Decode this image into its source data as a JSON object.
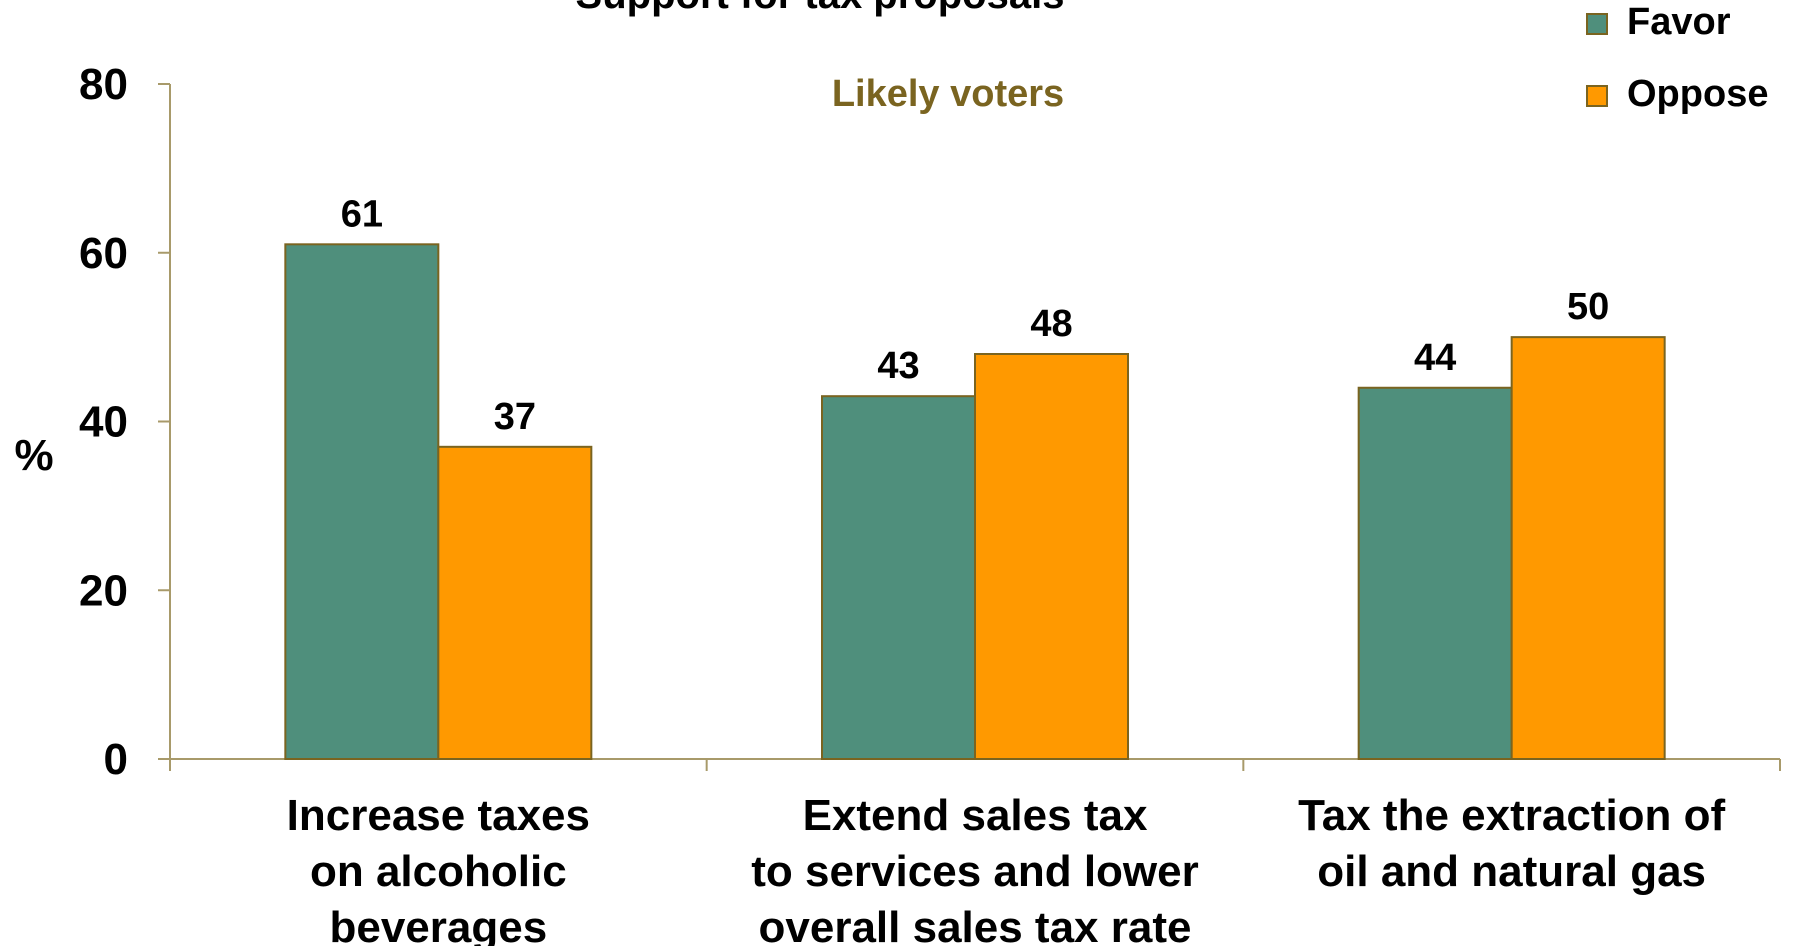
{
  "chart_data": {
    "type": "bar",
    "title": "Support for tax proposals",
    "subtitle": "Likely voters",
    "ylabel": "%",
    "xlabel": "",
    "ylim": [
      0,
      80
    ],
    "yticks": [
      0,
      20,
      40,
      60,
      80
    ],
    "grid": false,
    "legend_position": "top-right",
    "categories": [
      [
        "Increase taxes",
        "on alcoholic",
        "beverages"
      ],
      [
        "Extend sales tax",
        "to services and lower",
        "overall sales tax rate"
      ],
      [
        "Tax the extraction of",
        "oil and natural gas"
      ]
    ],
    "series": [
      {
        "name": "Favor",
        "color": "#4f8f7c",
        "values": [
          61,
          43,
          44
        ]
      },
      {
        "name": "Oppose",
        "color": "#ff9900",
        "values": [
          37,
          48,
          50
        ]
      }
    ],
    "colors": {
      "axis": "#a89a6a",
      "bar_border": "#7a6420",
      "subtitle": "#7a6420"
    }
  }
}
